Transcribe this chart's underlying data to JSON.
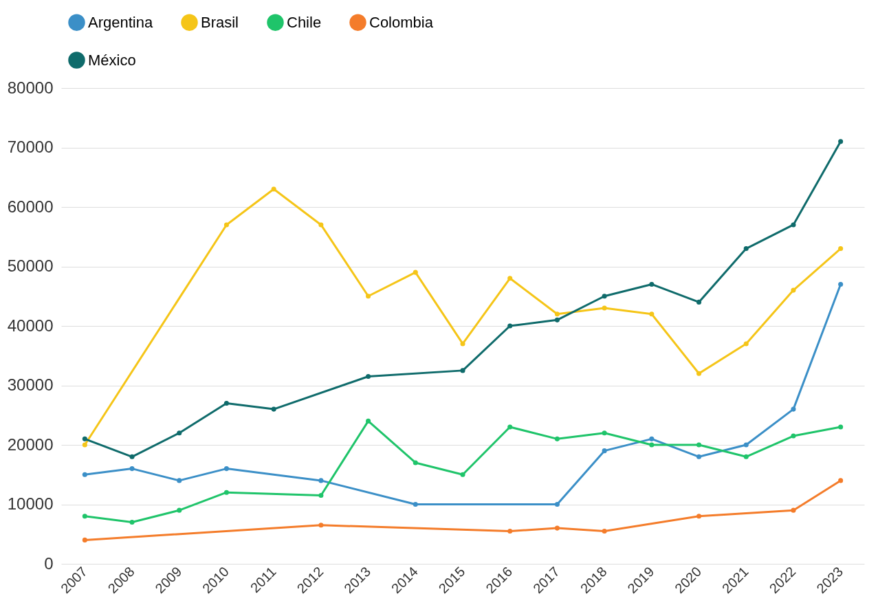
{
  "chart_data": {
    "type": "line",
    "categories": [
      "2007",
      "2008",
      "2009",
      "2010",
      "2011",
      "2012",
      "2013",
      "2014",
      "2015",
      "2016",
      "2017",
      "2018",
      "2019",
      "2020",
      "2021",
      "2022",
      "2023"
    ],
    "series": [
      {
        "name": "Argentina",
        "color": "#3b8fc7",
        "values": [
          15000,
          16000,
          14000,
          16000,
          null,
          14000,
          null,
          10000,
          null,
          null,
          10000,
          19000,
          21000,
          18000,
          20000,
          26000,
          47000
        ]
      },
      {
        "name": "Brasil",
        "color": "#f5c518",
        "values": [
          20000,
          null,
          null,
          57000,
          63000,
          57000,
          45000,
          49000,
          37000,
          48000,
          42000,
          43000,
          42000,
          32000,
          37000,
          46000,
          53000
        ]
      },
      {
        "name": "Chile",
        "color": "#1fc46a",
        "values": [
          8000,
          7000,
          9000,
          12000,
          null,
          11500,
          24000,
          17000,
          15000,
          23000,
          21000,
          22000,
          20000,
          20000,
          18000,
          21500,
          23000
        ]
      },
      {
        "name": "Colombia",
        "color": "#f47c2a",
        "values": [
          4000,
          null,
          null,
          null,
          null,
          6500,
          null,
          null,
          null,
          5500,
          6000,
          5500,
          null,
          8000,
          null,
          9000,
          14000
        ]
      },
      {
        "name": "México",
        "color": "#0f6b6b",
        "values": [
          21000,
          18000,
          22000,
          27000,
          26000,
          null,
          31500,
          null,
          32500,
          40000,
          41000,
          45000,
          47000,
          44000,
          53000,
          57000,
          71000
        ]
      }
    ],
    "ylim": [
      0,
      80000
    ],
    "yticks": [
      0,
      10000,
      20000,
      30000,
      40000,
      50000,
      60000,
      70000,
      80000
    ],
    "grid": "y",
    "legend": "top",
    "marker": "circle",
    "line_style": "solid"
  }
}
